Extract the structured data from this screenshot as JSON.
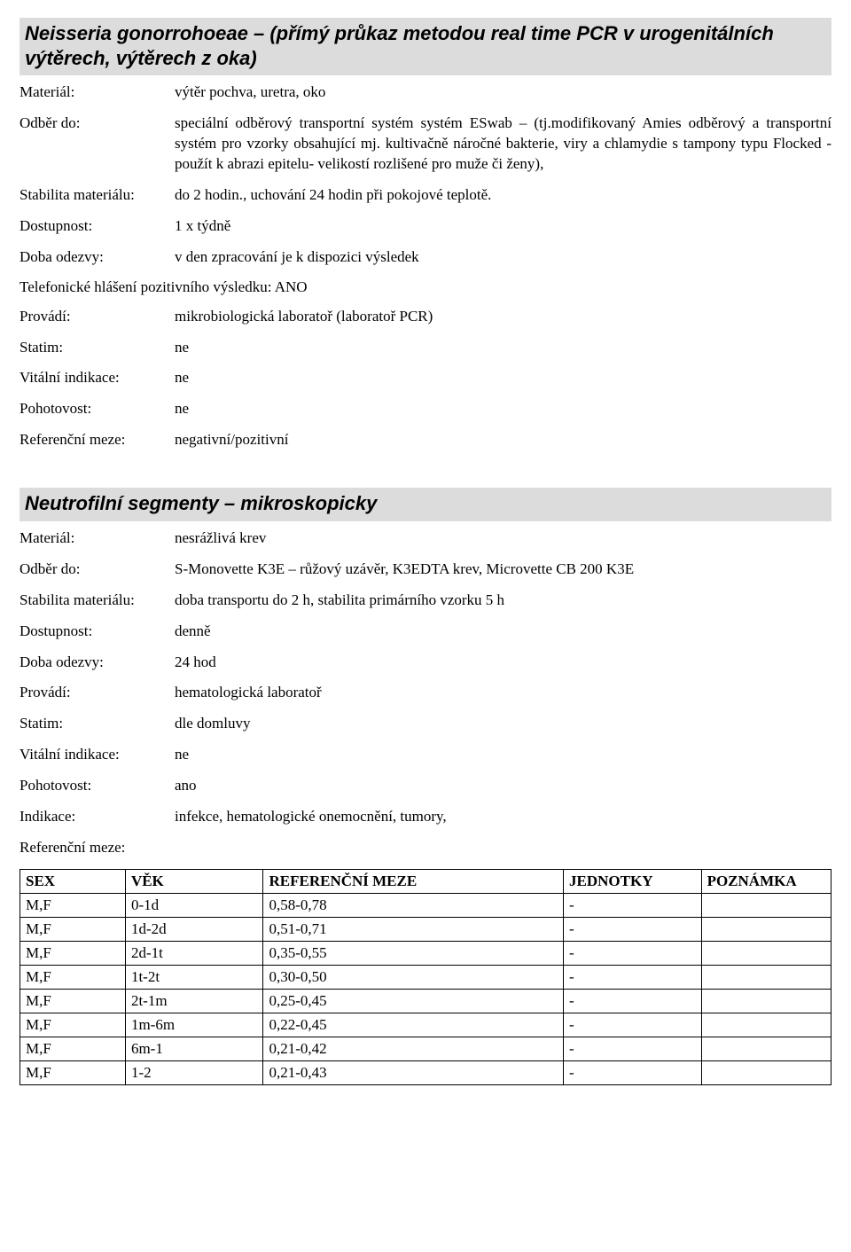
{
  "section1": {
    "title": "Neisseria gonorrohoeae – (přímý průkaz metodou real time PCR v urogenitálních výtěrech, výtěrech z oka)",
    "rows": [
      {
        "label": "Materiál:",
        "value": "výtěr pochva, uretra, oko"
      },
      {
        "label": "Odběr do:",
        "value": "speciální odběrový transportní systém systém ESwab – (tj.modifikovaný Amies odběrový a transportní systém pro vzorky obsahující mj. kultivačně náročné bakterie, viry a chlamydie s tampony typu Flocked -použít k abrazi epitelu- velikostí rozlišené pro muže či ženy),"
      },
      {
        "label": "Stabilita materiálu:",
        "value": "do 2 hodin., uchování 24 hodin při pokojové teplotě."
      },
      {
        "label": "Dostupnost:",
        "value": "1 x týdně"
      },
      {
        "label": "Doba odezvy:",
        "value": "v den zpracování je k dispozici výsledek"
      }
    ],
    "tel_line": "Telefonické hlášení pozitivního výsledku:  ANO",
    "rows2": [
      {
        "label": "Provádí:",
        "value": "mikrobiologická laboratoř (laboratoř PCR)"
      },
      {
        "label": "Statim:",
        "value": "ne"
      },
      {
        "label": "Vitální indikace:",
        "value": "ne"
      },
      {
        "label": "Pohotovost:",
        "value": "ne"
      },
      {
        "label": "Referenční meze:",
        "value": " negativní/pozitivní"
      }
    ]
  },
  "section2": {
    "title": "Neutrofilní segmenty – mikroskopicky",
    "rows": [
      {
        "label": "Materiál:",
        "value": "nesrážlivá krev"
      },
      {
        "label": "Odběr do:",
        "value": "S-Monovette K3E – růžový uzávěr, K3EDTA krev, Microvette CB 200 K3E"
      },
      {
        "label": "Stabilita materiálu:",
        "value": "doba transportu do 2 h, stabilita primárního vzorku 5 h"
      },
      {
        "label": "Dostupnost:",
        "value": "denně"
      },
      {
        "label": "Doba odezvy:",
        "value": "24 hod"
      },
      {
        "label": "Provádí:",
        "value": "hematologická laboratoř"
      },
      {
        "label": "Statim:",
        "value": "dle domluvy"
      },
      {
        "label": "Vitální indikace:",
        "value": "ne"
      },
      {
        "label": "Pohotovost:",
        "value": "ano"
      },
      {
        "label": "Indikace:",
        "value": "infekce, hematologické onemocnění, tumory,"
      },
      {
        "label": "Referenční meze:",
        "value": ""
      }
    ],
    "table": {
      "headers": [
        "SEX",
        "VĚK",
        "REFERENČNÍ MEZE",
        "JEDNOTKY",
        "POZNÁMKA"
      ],
      "rows": [
        [
          "M,F",
          "0-1d",
          "0,58-0,78",
          "-",
          ""
        ],
        [
          "M,F",
          "1d-2d",
          "0,51-0,71",
          "-",
          ""
        ],
        [
          "M,F",
          "2d-1t",
          "0,35-0,55",
          "-",
          ""
        ],
        [
          "M,F",
          "1t-2t",
          "0,30-0,50",
          "-",
          ""
        ],
        [
          "M,F",
          "2t-1m",
          "0,25-0,45",
          "-",
          ""
        ],
        [
          "M,F",
          "1m-6m",
          "0,22-0,45",
          "-",
          ""
        ],
        [
          "M,F",
          "6m-1",
          "0,21-0,42",
          "-",
          ""
        ],
        [
          "M,F",
          "1-2",
          "0,21-0,43",
          "-",
          ""
        ]
      ]
    }
  }
}
